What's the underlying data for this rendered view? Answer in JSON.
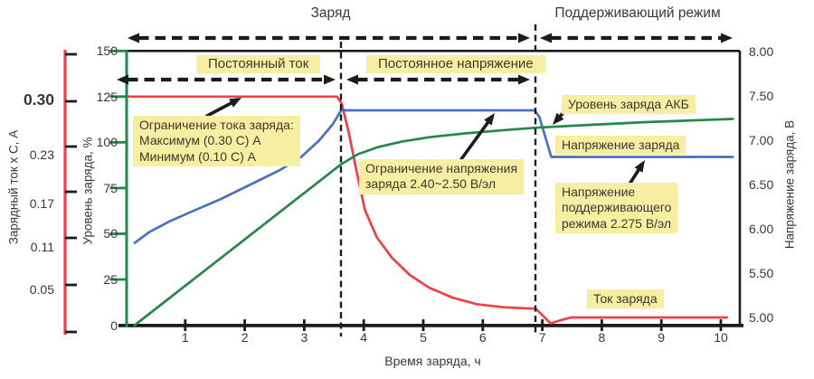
{
  "chart": {
    "title_charge": "Заряд",
    "title_float": "Поддерживающий режим",
    "phase_cc": "Постоянный ток",
    "phase_cv": "Постоянное напряжение",
    "callout_current_limit": "Ограничение тока заряда:\nМаксимум (0.30 С) А\nМинимум (0.10 С) А",
    "callout_voltage_limit": "Ограничение напряжения\nзаряда 2.40~2.50 В/эл",
    "callout_soc": "Уровень заряда АКБ",
    "callout_charge_voltage": "Напряжение заряда",
    "callout_float_voltage": "Напряжение\nподдерживающего\nрежима 2.275 В/эл",
    "callout_charge_current": "Ток заряда",
    "axis_current_label": "Зарядный ток х С, А",
    "axis_percent_label": "Уровень заряда, %",
    "axis_voltage_label": "Напряжение заряда, В",
    "axis_time_label": "Время заряда, ч"
  },
  "colors": {
    "red": "#ee4046",
    "green": "#27874b",
    "blue": "#4b6fc3",
    "yellow": "#f6efa1",
    "axis_black": "#1c1c1c",
    "text": "#3d3733"
  },
  "chart_data": {
    "type": "line",
    "title": "Заряд / Поддерживающий режим",
    "xlabel": "Время заряда, ч",
    "x_ticks": [
      1,
      2,
      3,
      4,
      5,
      6,
      7,
      8,
      9,
      10
    ],
    "x_range": [
      0,
      10.4
    ],
    "y_left_percent": {
      "label": "Уровень заряда, %",
      "ticks": [
        0,
        25,
        50,
        75,
        100,
        125,
        150
      ],
      "range": [
        0,
        150
      ]
    },
    "y_far_left_current": {
      "label": "Зарядный ток х С, А",
      "tick_labels": [
        "0.30",
        "0.23",
        "0.17",
        "0.11",
        "0.05"
      ]
    },
    "y_right_voltage": {
      "label": "Напряжение заряда, В",
      "tick_labels": [
        "8.00",
        "7.50",
        "7.00",
        "6.50",
        "6.00",
        "5.50",
        "5.00"
      ],
      "range": [
        5.0,
        8.0
      ]
    },
    "phase_boundaries_t": [
      3.62,
      6.89
    ],
    "annotations": {
      "current_limit_max": "0.30 C",
      "current_limit_min": "0.10 C",
      "voltage_limit_per_cell": "2.40~2.50 В/эл",
      "float_voltage_per_cell": "2.275 В/эл"
    },
    "series": [
      {
        "name": "Ток заряда",
        "color_key": "red",
        "units": "percent-of-left-axis",
        "points": [
          [
            0.05,
            125
          ],
          [
            3.55,
            125
          ],
          [
            3.63,
            121
          ],
          [
            3.75,
            105
          ],
          [
            3.88,
            84
          ],
          [
            4.02,
            63
          ],
          [
            4.22,
            48
          ],
          [
            4.47,
            37
          ],
          [
            4.77,
            27.5
          ],
          [
            5.1,
            20.5
          ],
          [
            5.5,
            15
          ],
          [
            5.9,
            11.5
          ],
          [
            6.35,
            9.8
          ],
          [
            6.89,
            9
          ],
          [
            7.0,
            5.5
          ],
          [
            7.14,
            1
          ],
          [
            7.32,
            2.8
          ],
          [
            7.48,
            4.2
          ],
          [
            10.1,
            4.2
          ]
        ]
      },
      {
        "name": "Напряжение заряда",
        "color_key": "blue",
        "units": "percent-of-left-axis",
        "points": [
          [
            0.15,
            45
          ],
          [
            0.4,
            51
          ],
          [
            0.75,
            57
          ],
          [
            1.1,
            62
          ],
          [
            1.6,
            69
          ],
          [
            2.1,
            77
          ],
          [
            2.6,
            85
          ],
          [
            2.95,
            92
          ],
          [
            3.25,
            101
          ],
          [
            3.48,
            110
          ],
          [
            3.62,
            117.5
          ],
          [
            6.87,
            117.5
          ],
          [
            6.95,
            114
          ],
          [
            7.15,
            92
          ],
          [
            10.2,
            92
          ]
        ]
      },
      {
        "name": "Уровень заряда АКБ",
        "color_key": "green",
        "units": "percent-of-left-axis",
        "points": [
          [
            0.15,
            0
          ],
          [
            3.62,
            88
          ],
          [
            3.9,
            93.5
          ],
          [
            4.25,
            97.5
          ],
          [
            4.65,
            100.5
          ],
          [
            5.1,
            102.8
          ],
          [
            5.7,
            104.9
          ],
          [
            6.3,
            106.5
          ],
          [
            6.89,
            108
          ],
          [
            7.7,
            109.4
          ],
          [
            8.7,
            111
          ],
          [
            9.7,
            112.2
          ],
          [
            10.2,
            112.8
          ]
        ]
      }
    ]
  }
}
